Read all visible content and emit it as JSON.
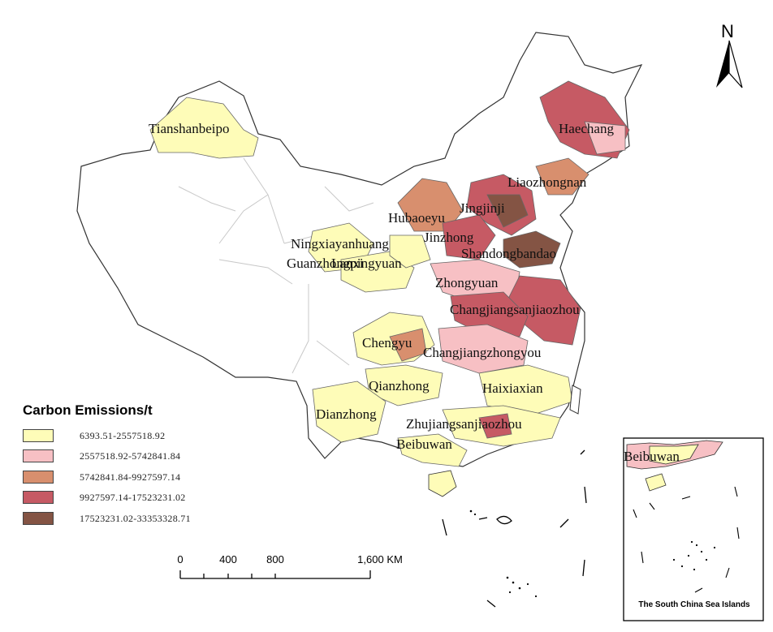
{
  "legend": {
    "title": "Carbon Emissions/t",
    "classes": [
      {
        "label": "6393.51-2557518.92",
        "color": "#fefcb8"
      },
      {
        "label": "2557518.92-5742841.84",
        "color": "#f7c0c4"
      },
      {
        "label": "5742841.84-9927597.14",
        "color": "#d88f6e"
      },
      {
        "label": "9927597.14-17523231.02",
        "color": "#c65a64"
      },
      {
        "label": "17523231.02-33353328.71",
        "color": "#845444"
      }
    ]
  },
  "regions": {
    "tianshanbeipo": "Tianshanbeipo",
    "haechang": "Haechang",
    "liaozhongnan": "Liaozhongnan",
    "jingjinji": "Jingjinji",
    "hubaoeyu": "Hubaoeyu",
    "jinzhong": "Jinzhong",
    "ningxiayanhuang": "Ningxiayanhuang",
    "shandongbandao": "Shandongbandao",
    "guanzhongpingyuan": "Guanzhongpingyuan",
    "lanxi": "Lanxi",
    "zhongyuan": "Zhongyuan",
    "changjiangsanjiaozhou": "Changjiangsanjiaozhou",
    "chengyu": "Chengyu",
    "changjiangzhongyou": "Changjiangzhongyou",
    "qianzhong": "Qianzhong",
    "haixiaxian": "Haixiaxian",
    "dianzhong": "Dianzhong",
    "zhujiangsanjiaozhou": "Zhujiangsanjiaozhou",
    "beibuwan": "Beibuwan"
  },
  "inset": {
    "caption": "The South China Sea Islands",
    "label": "Beibuwan"
  },
  "north_arrow": {
    "label": "N"
  },
  "scale_bar": {
    "ticks": [
      "0",
      "400",
      "800",
      "1,600 KM"
    ]
  }
}
